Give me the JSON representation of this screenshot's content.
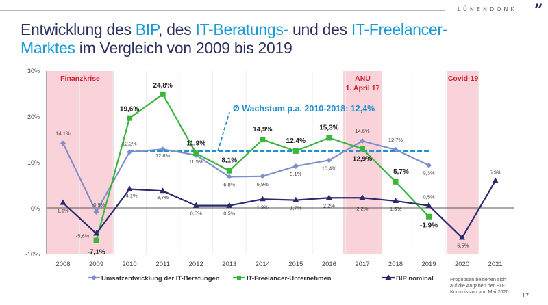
{
  "header": {
    "logo": "LÜNENDONK",
    "title_parts": [
      {
        "text": "Entwicklung des ",
        "hl": false
      },
      {
        "text": "BIP",
        "hl": true
      },
      {
        "text": ", des ",
        "hl": false
      },
      {
        "text": "IT-Beratungs-",
        "hl": true
      },
      {
        "text": " und des ",
        "hl": false
      },
      {
        "text": "IT-Freelancer-",
        "hl": true
      },
      {
        "text": "Marktes",
        "hl": true,
        "br": true
      },
      {
        "text": " im Vergleich von 2009 bis 2019",
        "hl": false
      }
    ]
  },
  "page_number": "17",
  "colors": {
    "beratung": "#7f8fc9",
    "freelancer": "#3bb53b",
    "bip": "#2b2a6e",
    "average": "#1f8fcf",
    "band": "#f9d3d9",
    "band_text": "#d0202f"
  },
  "chart_data": {
    "type": "line",
    "categories": [
      "2008",
      "2009",
      "2010",
      "2011",
      "2012",
      "2013",
      "2014",
      "2015",
      "2016",
      "2017",
      "2018",
      "2019",
      "2020",
      "2021"
    ],
    "ylim": [
      -10,
      30
    ],
    "yticks": [
      "-10%",
      "0%",
      "10%",
      "20%",
      "30%"
    ],
    "ytick_values": [
      -10,
      0,
      10,
      20,
      30
    ],
    "grid": "vertical-light",
    "legend_placement": "bottom",
    "series": [
      {
        "name": "Umsatzentwicklung der IT-Beratungen",
        "key": "beratung",
        "marker": "diamond",
        "x": [
          "2008",
          "2009",
          "2010",
          "2011",
          "2012",
          "2013",
          "2014",
          "2015",
          "2016",
          "2017",
          "2018",
          "2019"
        ],
        "values": [
          14.1,
          -0.9,
          12.2,
          12.8,
          11.5,
          6.8,
          6.9,
          9.1,
          10.4,
          14.6,
          12.7,
          9.3
        ],
        "labels": [
          "14,1%",
          "-0,9%",
          "12,2%",
          "12,8%",
          "11,5%",
          "6,8%",
          "6,9%",
          "9,1%",
          "10,4%",
          "14,6%",
          "12,7%",
          "9,3%"
        ]
      },
      {
        "name": "IT-Freelancer-Unternehmen",
        "key": "freelancer",
        "marker": "square",
        "x": [
          "2009",
          "2010",
          "2011",
          "2012",
          "2013",
          "2014",
          "2015",
          "2016",
          "2017",
          "2018",
          "2019"
        ],
        "values": [
          -7.1,
          19.6,
          24.8,
          11.9,
          8.1,
          14.9,
          12.4,
          15.3,
          12.9,
          5.7,
          -1.9
        ],
        "labels": [
          "-7,1%",
          "19,6%",
          "24,8%",
          "11,9%",
          "8,1%",
          "14,9%",
          "12,4%",
          "15,3%",
          "12,9%",
          "5,7%",
          "-1,9%"
        ]
      },
      {
        "name": "BIP nominal",
        "key": "bip",
        "marker": "triangle",
        "x": [
          "2008",
          "2009",
          "2010",
          "2011",
          "2012",
          "2013",
          "2014",
          "2015",
          "2016",
          "2017",
          "2018",
          "2019",
          "2020",
          "2021"
        ],
        "values": [
          1.1,
          -5.6,
          4.1,
          3.7,
          0.5,
          0.5,
          1.9,
          1.7,
          2.2,
          2.2,
          1.5,
          0.5,
          -6.5,
          5.9
        ],
        "labels": [
          "1,1%",
          "-5,6%",
          "4,1%",
          "3,7%",
          "0,5%",
          "0,5%",
          "1,9%",
          "1,7%",
          "2,2%",
          "2,2%",
          "1,5%",
          "0,5%",
          "-6,5%",
          "5,9%"
        ]
      }
    ],
    "average": {
      "label": "Ø Wachstum p.a. 2010-2018: 12,4%",
      "value": 12.4,
      "from": "2010",
      "to": "2019"
    },
    "bands": [
      {
        "label": [
          "Finanzkrise"
        ],
        "from": "2008",
        "to": "2009"
      },
      {
        "label": [
          "ANÜ",
          "1. April 17"
        ],
        "from": "2017",
        "to": "2017"
      },
      {
        "label": [
          "Covid-19"
        ],
        "from": "2020",
        "to": "2020"
      }
    ],
    "footnote": [
      "Prognosen beziehen sich",
      "auf die Angaben der EU-",
      "Kommission von Mai 2020"
    ]
  }
}
